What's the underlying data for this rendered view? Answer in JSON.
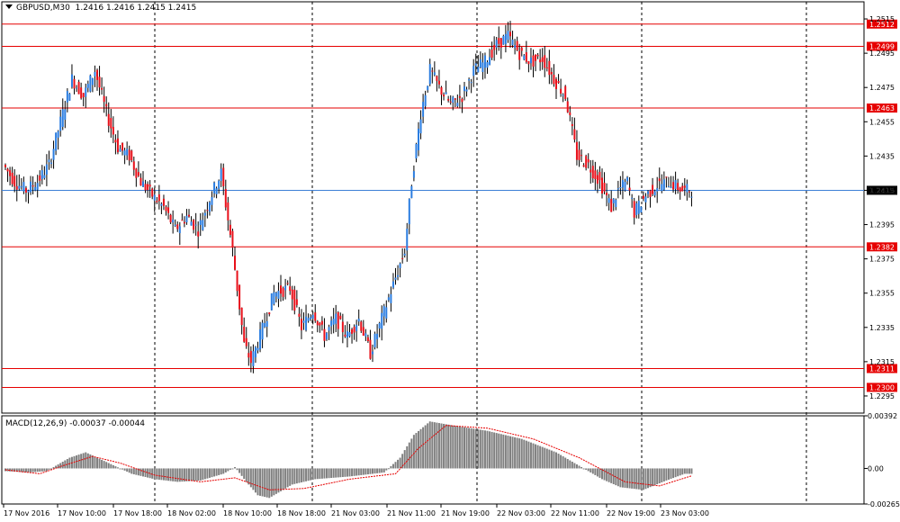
{
  "header": {
    "symbol": "GBPUSD,M30",
    "ohlc": "1.2416 1.2416 1.2415 1.2415"
  },
  "macd_header": {
    "label": "MACD(12,26,9)",
    "values": "-0.00037 -0.00044"
  },
  "colors": {
    "bull": "#2b7de0",
    "bear": "#e8101a",
    "wick": "#000000",
    "level_line": "#e60000",
    "current_line": "#3d7fd6",
    "current_tag": "#000000",
    "histogram": "#808080",
    "signal": "#e60000"
  },
  "chart_data": [
    {
      "type": "candlestick",
      "title": "GBPUSD,M30",
      "ylim": [
        1.2285,
        1.2525
      ],
      "y_ticks": [
        1.2295,
        1.2315,
        1.2335,
        1.2355,
        1.2375,
        1.2395,
        1.2415,
        1.2435,
        1.2455,
        1.2475,
        1.2495,
        1.2515
      ],
      "y_tick_labels": [
        "1.2295",
        "1.2315",
        "1.2335",
        "1.2355",
        "1.2375",
        "1.2395",
        "1.2415",
        "1.2435",
        "1.2455",
        "1.2475",
        "1.2495",
        "1.2515"
      ],
      "x_tick_labels": [
        "17 Nov 2016",
        "17 Nov 10:00",
        "17 Nov 18:00",
        "18 Nov 02:00",
        "18 Nov 10:00",
        "18 Nov 18:00",
        "21 Nov 03:00",
        "21 Nov 11:00",
        "21 Nov 19:00",
        "22 Nov 03:00",
        "22 Nov 11:00",
        "22 Nov 19:00",
        "23 Nov 03:00"
      ],
      "grid": "vertical dashed at session separators",
      "horizontal_levels": [
        {
          "value": 1.2512,
          "label": "1.2512"
        },
        {
          "value": 1.2499,
          "label": "1.2499"
        },
        {
          "value": 1.2463,
          "label": "1.2463"
        },
        {
          "value": 1.2382,
          "label": "1.2382"
        },
        {
          "value": 1.2311,
          "label": "1.2311"
        },
        {
          "value": 1.23,
          "label": "1.2300"
        }
      ],
      "current_price": {
        "value": 1.2415,
        "label": "1.2415"
      },
      "price_path": [
        [
          0,
          1.243
        ],
        [
          5,
          1.242
        ],
        [
          10,
          1.2415
        ],
        [
          15,
          1.242
        ],
        [
          20,
          1.243
        ],
        [
          25,
          1.2455
        ],
        [
          30,
          1.248
        ],
        [
          35,
          1.247
        ],
        [
          40,
          1.2485
        ],
        [
          45,
          1.246
        ],
        [
          50,
          1.244
        ],
        [
          55,
          1.2435
        ],
        [
          60,
          1.242
        ],
        [
          65,
          1.2412
        ],
        [
          70,
          1.2405
        ],
        [
          75,
          1.2392
        ],
        [
          80,
          1.24
        ],
        [
          85,
          1.2392
        ],
        [
          90,
          1.241
        ],
        [
          95,
          1.2425
        ],
        [
          100,
          1.238
        ],
        [
          105,
          1.2325
        ],
        [
          108,
          1.2315
        ],
        [
          112,
          1.233
        ],
        [
          118,
          1.2355
        ],
        [
          125,
          1.2358
        ],
        [
          130,
          1.2335
        ],
        [
          135,
          1.2345
        ],
        [
          140,
          1.233
        ],
        [
          145,
          1.234
        ],
        [
          150,
          1.233
        ],
        [
          155,
          1.234
        ],
        [
          160,
          1.232
        ],
        [
          165,
          1.234
        ],
        [
          170,
          1.236
        ],
        [
          175,
          1.238
        ],
        [
          178,
          1.242
        ],
        [
          182,
          1.246
        ],
        [
          186,
          1.2485
        ],
        [
          190,
          1.2475
        ],
        [
          195,
          1.2465
        ],
        [
          200,
          1.247
        ],
        [
          205,
          1.2485
        ],
        [
          210,
          1.249
        ],
        [
          215,
          1.25
        ],
        [
          220,
          1.2505
        ],
        [
          225,
          1.2495
        ],
        [
          230,
          1.249
        ],
        [
          235,
          1.2492
        ],
        [
          240,
          1.248
        ],
        [
          245,
          1.247
        ],
        [
          250,
          1.2435
        ],
        [
          255,
          1.243
        ],
        [
          260,
          1.242
        ],
        [
          265,
          1.2405
        ],
        [
          268,
          1.2415
        ],
        [
          272,
          1.242
        ],
        [
          275,
          1.2402
        ],
        [
          280,
          1.2412
        ],
        [
          285,
          1.2418
        ],
        [
          290,
          1.242
        ],
        [
          296,
          1.2415
        ],
        [
          300,
          1.2415
        ]
      ]
    },
    {
      "type": "bar",
      "title": "MACD(12,26,9)",
      "ylim": [
        -0.00265,
        0.00392
      ],
      "y_ticks": [
        0.00392,
        0.0,
        -0.00265
      ],
      "y_tick_labels": [
        "0.00392",
        "0.00",
        "-0.00265"
      ],
      "series": [
        {
          "name": "MACD",
          "style": "histogram",
          "path": [
            [
              0,
              -0.0002
            ],
            [
              10,
              -0.0003
            ],
            [
              18,
              -0.0002
            ],
            [
              28,
              0.0008
            ],
            [
              35,
              0.0012
            ],
            [
              45,
              0.0004
            ],
            [
              55,
              -0.0004
            ],
            [
              65,
              -0.0008
            ],
            [
              75,
              -0.001
            ],
            [
              85,
              -0.0009
            ],
            [
              95,
              -0.0004
            ],
            [
              100,
              0.0001
            ],
            [
              105,
              -0.001
            ],
            [
              110,
              -0.002
            ],
            [
              115,
              -0.0022
            ],
            [
              125,
              -0.0012
            ],
            [
              135,
              -0.0008
            ],
            [
              150,
              -0.0006
            ],
            [
              165,
              -0.0003
            ],
            [
              172,
              0.0008
            ],
            [
              178,
              0.0025
            ],
            [
              185,
              0.0035
            ],
            [
              195,
              0.0032
            ],
            [
              210,
              0.0028
            ],
            [
              225,
              0.0022
            ],
            [
              240,
              0.0012
            ],
            [
              250,
              0.0002
            ],
            [
              260,
              -0.0008
            ],
            [
              268,
              -0.0014
            ],
            [
              278,
              -0.0016
            ],
            [
              288,
              -0.0009
            ],
            [
              296,
              -0.0004
            ],
            [
              300,
              -0.0004
            ]
          ]
        },
        {
          "name": "Signal",
          "style": "dashed-line",
          "path": [
            [
              0,
              -0.0001
            ],
            [
              15,
              -0.0004
            ],
            [
              25,
              0.0002
            ],
            [
              38,
              0.0009
            ],
            [
              50,
              0.0004
            ],
            [
              65,
              -0.0005
            ],
            [
              85,
              -0.001
            ],
            [
              100,
              -0.0007
            ],
            [
              115,
              -0.0016
            ],
            [
              130,
              -0.0015
            ],
            [
              150,
              -0.0008
            ],
            [
              170,
              -0.0004
            ],
            [
              180,
              0.0015
            ],
            [
              192,
              0.0032
            ],
            [
              210,
              0.003
            ],
            [
              230,
              0.0022
            ],
            [
              250,
              0.0008
            ],
            [
              270,
              -0.001
            ],
            [
              285,
              -0.0013
            ],
            [
              300,
              -0.0005
            ]
          ]
        }
      ]
    }
  ]
}
